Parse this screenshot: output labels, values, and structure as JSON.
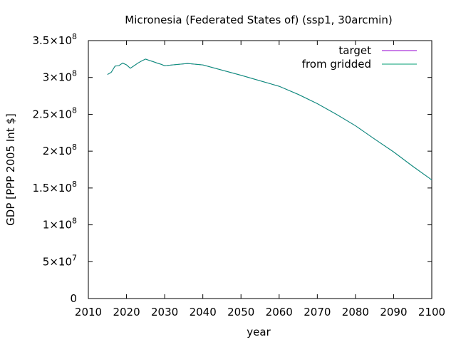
{
  "chart_data": {
    "type": "line",
    "title": "Micronesia (Federated States of) (ssp1, 30arcmin)",
    "xlabel": "year",
    "ylabel": "GDP [PPP 2005 Int $]",
    "xlim": [
      2010,
      2100
    ],
    "ylim": [
      0,
      350000000
    ],
    "grid": false,
    "legend_position": "top-right",
    "x_ticks": [
      {
        "value": 2010,
        "label": "2010"
      },
      {
        "value": 2020,
        "label": "2020"
      },
      {
        "value": 2030,
        "label": "2030"
      },
      {
        "value": 2040,
        "label": "2040"
      },
      {
        "value": 2050,
        "label": "2050"
      },
      {
        "value": 2060,
        "label": "2060"
      },
      {
        "value": 2070,
        "label": "2070"
      },
      {
        "value": 2080,
        "label": "2080"
      },
      {
        "value": 2090,
        "label": "2090"
      },
      {
        "value": 2100,
        "label": "2100"
      }
    ],
    "y_ticks": [
      {
        "value": 0,
        "mant": "0",
        "exp": ""
      },
      {
        "value": 50000000,
        "mant": "5×10",
        "exp": "7"
      },
      {
        "value": 100000000,
        "mant": "1×10",
        "exp": "8"
      },
      {
        "value": 150000000,
        "mant": "1.5×10",
        "exp": "8"
      },
      {
        "value": 200000000,
        "mant": "2×10",
        "exp": "8"
      },
      {
        "value": 250000000,
        "mant": "2.5×10",
        "exp": "8"
      },
      {
        "value": 300000000,
        "mant": "3×10",
        "exp": "8"
      },
      {
        "value": 350000000,
        "mant": "3.5×10",
        "exp": "8"
      }
    ],
    "series": [
      {
        "name": "target",
        "color": "#9400d3",
        "x": [
          2015,
          2016,
          2017,
          2018,
          2019,
          2020,
          2021,
          2022,
          2023,
          2024,
          2025,
          2026,
          2027,
          2028,
          2029,
          2030,
          2032,
          2034,
          2036,
          2038,
          2040,
          2045,
          2050,
          2055,
          2060,
          2065,
          2070,
          2075,
          2080,
          2085,
          2090,
          2095,
          2100
        ],
        "values": [
          304000000,
          307000000,
          315500000,
          316000000,
          319500000,
          317000000,
          312500000,
          316000000,
          319500000,
          322500000,
          325000000,
          323000000,
          321500000,
          319500000,
          318000000,
          316000000,
          317000000,
          318000000,
          319000000,
          318000000,
          317000000,
          310000000,
          303000000,
          295500000,
          288000000,
          277000000,
          264500000,
          250000000,
          234500000,
          216500000,
          199000000,
          179500000,
          161000000
        ]
      },
      {
        "name": "from gridded",
        "color": "#009e73",
        "x": [
          2015,
          2016,
          2017,
          2018,
          2019,
          2020,
          2021,
          2022,
          2023,
          2024,
          2025,
          2026,
          2027,
          2028,
          2029,
          2030,
          2032,
          2034,
          2036,
          2038,
          2040,
          2045,
          2050,
          2055,
          2060,
          2065,
          2070,
          2075,
          2080,
          2085,
          2090,
          2095,
          2100
        ],
        "values": [
          304000000,
          307000000,
          315500000,
          316000000,
          319500000,
          317000000,
          312500000,
          316000000,
          319500000,
          322500000,
          325000000,
          323000000,
          321500000,
          319500000,
          318000000,
          316000000,
          317000000,
          318000000,
          319000000,
          318000000,
          317000000,
          310000000,
          303000000,
          295500000,
          288000000,
          277000000,
          264500000,
          250000000,
          234500000,
          216500000,
          199000000,
          179500000,
          161000000
        ]
      }
    ]
  }
}
